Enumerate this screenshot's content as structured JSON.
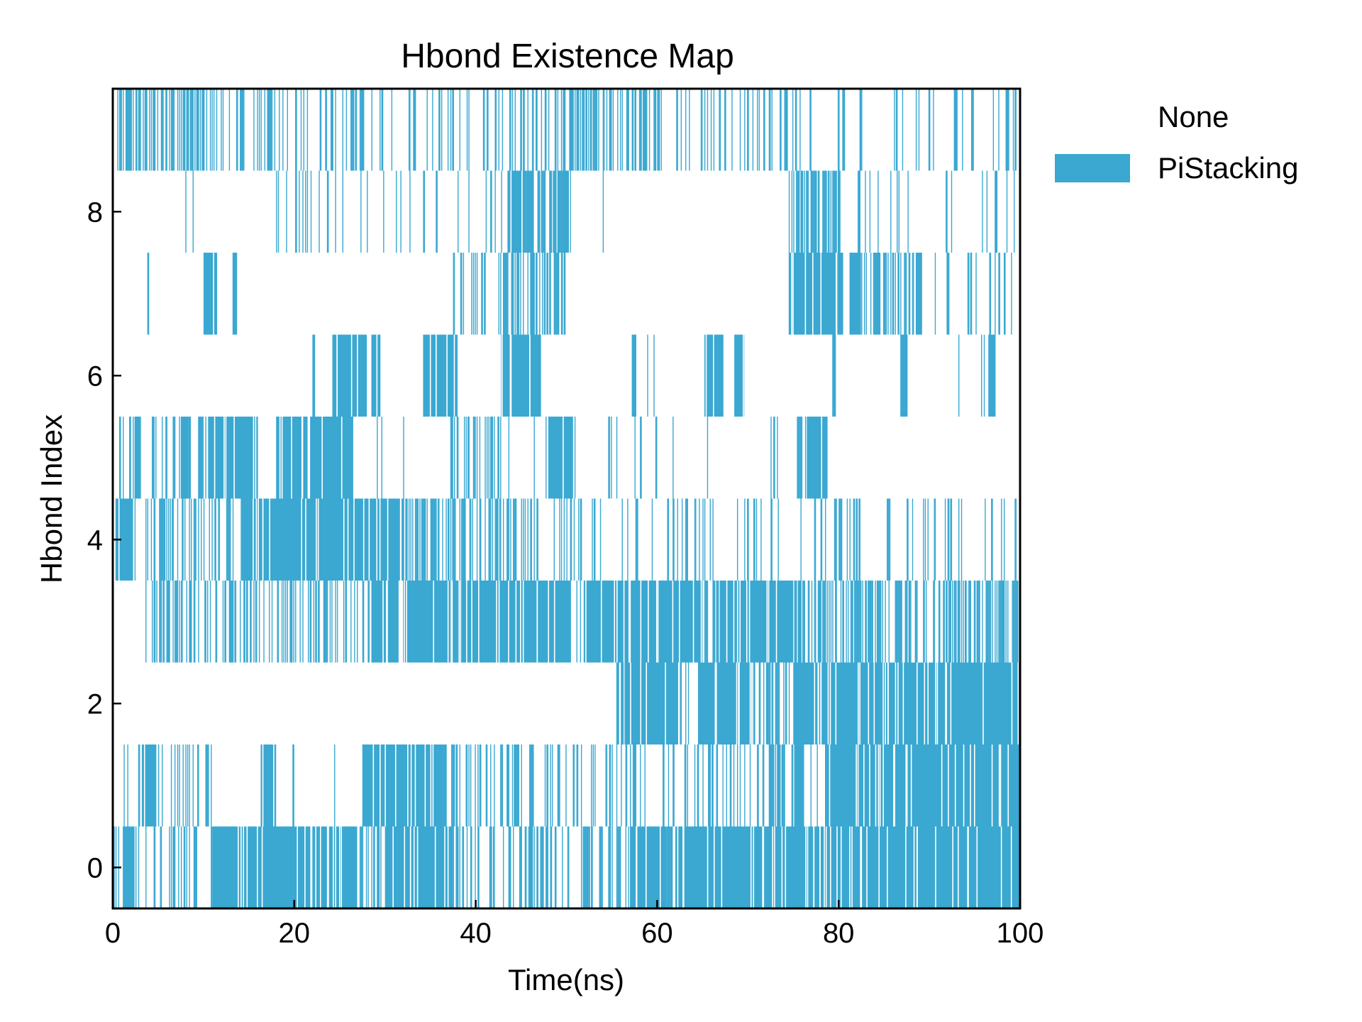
{
  "chart_data": {
    "type": "heatmap",
    "title": "Hbond Existence Map",
    "xlabel": "Time(ns)",
    "ylabel": "Hbond Index",
    "xlim": [
      0,
      100
    ],
    "ylim": [
      -0.5,
      9.5
    ],
    "x_ticks": [
      "0",
      "20",
      "40",
      "60",
      "80",
      "100"
    ],
    "y_ticks": [
      "0",
      "2",
      "4",
      "6",
      "8"
    ],
    "grid": false,
    "legend": {
      "position": "right",
      "entries": [
        {
          "label": "None",
          "color": "#ffffff"
        },
        {
          "label": "PiStacking",
          "color": "#3aa8d1"
        }
      ]
    },
    "rows": [
      {
        "index": 0,
        "dense": [
          [
            1.2,
            2.4
          ],
          [
            11,
            27
          ],
          [
            30,
            37.5
          ],
          [
            57,
            61
          ],
          [
            62,
            100
          ]
        ],
        "sparse": [
          [
            0,
            11,
            0.3
          ],
          [
            27,
            30,
            0.55
          ],
          [
            37.5,
            57,
            0.35
          ],
          [
            61,
            62,
            0.6
          ]
        ]
      },
      {
        "index": 1,
        "dense": [
          [
            3.2,
            4.8
          ],
          [
            16.3,
            18.0
          ],
          [
            27.5,
            36.2
          ],
          [
            75.2,
            76.3
          ],
          [
            78.5,
            100
          ]
        ],
        "sparse": [
          [
            1,
            3.2,
            0.15
          ],
          [
            4.8,
            11,
            0.35
          ],
          [
            18,
            27.5,
            0.02
          ],
          [
            36.2,
            56,
            0.28
          ],
          [
            56,
            75.2,
            0.22
          ],
          [
            76.3,
            78.5,
            0.05
          ]
        ]
      },
      {
        "index": 2,
        "dense": [
          [
            56.5,
            62.5
          ],
          [
            64.5,
            70.5
          ],
          [
            75,
            100
          ]
        ],
        "sparse": [
          [
            55.5,
            56.5,
            0.5
          ],
          [
            62.5,
            64.5,
            0.2
          ],
          [
            70.5,
            75,
            0.6
          ]
        ]
      },
      {
        "index": 3,
        "dense": [
          [
            28.5,
            31.5
          ],
          [
            32,
            50.5
          ],
          [
            52,
            65
          ],
          [
            67,
            75
          ]
        ],
        "sparse": [
          [
            3.5,
            28.5,
            0.32
          ],
          [
            50.5,
            52,
            0.3
          ],
          [
            65,
            67,
            0.5
          ],
          [
            75,
            100,
            0.5
          ]
        ]
      },
      {
        "index": 4,
        "dense": [
          [
            0.3,
            2.3
          ],
          [
            14.2,
            32.5
          ]
        ],
        "sparse": [
          [
            2.3,
            14.2,
            0.35
          ],
          [
            32.5,
            47,
            0.45
          ],
          [
            47,
            100,
            0.15
          ]
        ]
      },
      {
        "index": 5,
        "dense": [
          [
            2.4,
            3.0
          ],
          [
            7.5,
            8.3
          ],
          [
            10.5,
            16.0
          ],
          [
            18.0,
            26.5
          ],
          [
            48,
            51
          ],
          [
            76.5,
            78.8
          ]
        ],
        "sparse": [
          [
            0.3,
            2.4,
            0.3
          ],
          [
            3,
            7.5,
            0.25
          ],
          [
            8.3,
            10.5,
            0.5
          ],
          [
            26.5,
            37,
            0.05
          ],
          [
            37,
            43,
            0.35
          ],
          [
            43,
            48,
            0.05
          ],
          [
            51,
            75,
            0.05
          ],
          [
            75,
            76.5,
            0.4
          ],
          [
            78.8,
            100,
            0.0
          ]
        ]
      },
      {
        "index": 6,
        "dense": [
          [
            22.0,
            22.3
          ],
          [
            24.2,
            28.0
          ],
          [
            28.5,
            29.5
          ],
          [
            34.2,
            38.0
          ],
          [
            42.8,
            47.2
          ],
          [
            57.2,
            57.7
          ],
          [
            65.2,
            67.3
          ],
          [
            68.5,
            69.6
          ],
          [
            79.3,
            79.7
          ],
          [
            86.8,
            87.6
          ],
          [
            96.5,
            97.3
          ]
        ],
        "sparse": [
          [
            58.5,
            60,
            0.15
          ],
          [
            92,
            96,
            0.05
          ]
        ]
      },
      {
        "index": 7,
        "dense": [
          [
            10,
            11.5
          ],
          [
            13.2,
            13.7
          ],
          [
            74.5,
            80.5
          ],
          [
            81.2,
            82.5
          ],
          [
            84.0,
            84.6
          ],
          [
            88.5,
            89.2
          ]
        ],
        "sparse": [
          [
            3.8,
            4.0,
            1.0
          ],
          [
            37.5,
            43,
            0.2
          ],
          [
            43,
            50,
            0.45
          ],
          [
            82.5,
            88.5,
            0.35
          ],
          [
            89.2,
            99,
            0.15
          ]
        ]
      },
      {
        "index": 8,
        "dense": [
          [
            43.5,
            45.5
          ],
          [
            49.5,
            50.5
          ]
        ],
        "sparse": [
          [
            7,
            9,
            0.1
          ],
          [
            18,
            43.5,
            0.08
          ],
          [
            45.5,
            49.5,
            0.6
          ],
          [
            52,
            55,
            0.1
          ],
          [
            74.5,
            80,
            0.6
          ],
          [
            80,
            100,
            0.05
          ]
        ]
      },
      {
        "index": 9,
        "dense": [],
        "sparse": [
          [
            0.5,
            10,
            0.5
          ],
          [
            10,
            20,
            0.18
          ],
          [
            20,
            50,
            0.25
          ],
          [
            50,
            60,
            0.3
          ],
          [
            60,
            80,
            0.2
          ],
          [
            80,
            100,
            0.12
          ]
        ]
      }
    ]
  }
}
